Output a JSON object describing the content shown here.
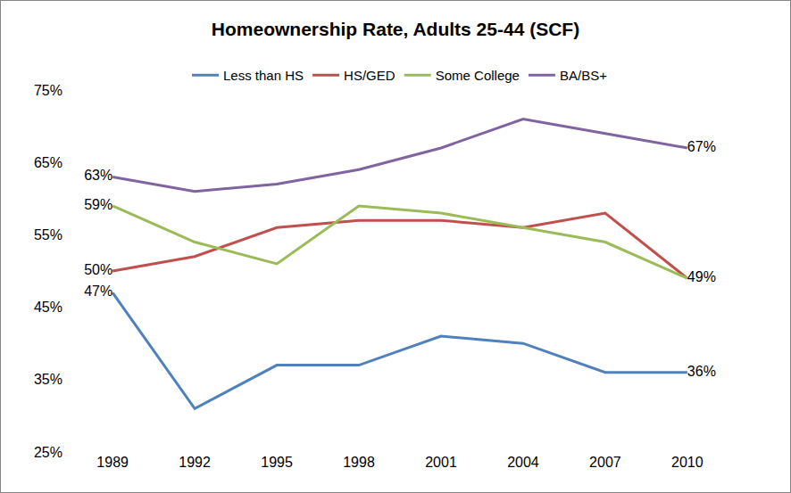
{
  "chart_data": {
    "type": "line",
    "title": "Homeownership Rate, Adults 25-44 (SCF)",
    "categories": [
      "1989",
      "1992",
      "1995",
      "1998",
      "2001",
      "2004",
      "2007",
      "2010"
    ],
    "series": [
      {
        "name": "Less than HS",
        "color": "#4F81BD",
        "values": [
          47,
          31,
          37,
          37,
          41,
          40,
          36,
          36
        ],
        "value_labels": [
          "47%",
          null,
          null,
          null,
          null,
          null,
          null,
          "36%"
        ]
      },
      {
        "name": "HS/GED",
        "color": "#C0504D",
        "values": [
          50,
          52,
          56,
          57,
          57,
          56,
          58,
          49
        ],
        "value_labels": [
          "50%",
          null,
          null,
          null,
          null,
          null,
          null,
          "49%"
        ]
      },
      {
        "name": "Some College",
        "color": "#9BBB59",
        "values": [
          59,
          54,
          51,
          59,
          58,
          56,
          54,
          49
        ],
        "value_labels": [
          "59%",
          null,
          null,
          null,
          null,
          null,
          null,
          null
        ]
      },
      {
        "name": "BA/BS+",
        "color": "#8064A2",
        "values": [
          63,
          61,
          62,
          64,
          67,
          71,
          69,
          67
        ],
        "value_labels": [
          "63%",
          null,
          null,
          null,
          null,
          null,
          null,
          "67%"
        ]
      }
    ],
    "ylim": [
      25,
      75
    ],
    "yticks": [
      {
        "value": 25,
        "label": "25%"
      },
      {
        "value": 35,
        "label": "35%"
      },
      {
        "value": 45,
        "label": "45%"
      },
      {
        "value": 55,
        "label": "55%"
      },
      {
        "value": 65,
        "label": "65%"
      },
      {
        "value": 75,
        "label": "75%"
      }
    ],
    "grid": false,
    "legend": "top",
    "data_labels": true
  }
}
